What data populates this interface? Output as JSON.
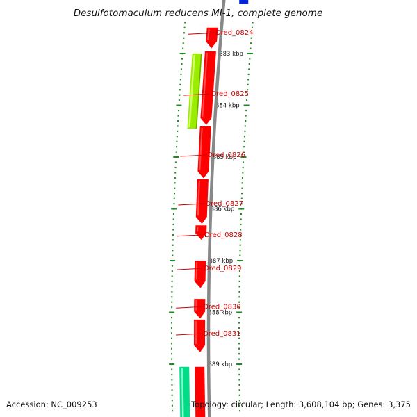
{
  "title": "Desulfotomaculum reducens MI-1, complete genome",
  "accession_text": "Accession: NC_009253",
  "summary_text": "Topology: circular; Length: 3,608,104 bp; Genes: 3,375",
  "colors": {
    "forward_gene": "#ff0000",
    "feature_green": "#99ee00",
    "feature_teal": "#00dd88",
    "top_feature": "#0022dd",
    "backbone": "#888888",
    "tick": "#228822",
    "gene_label": "#cc0000"
  },
  "chart_data": {
    "type": "genome-map",
    "topology": "circular",
    "units": "kbp",
    "ticks_kbp": [
      883,
      884,
      885,
      886,
      887,
      888,
      889
    ],
    "tick_labels": [
      "883 kbp",
      "884 kbp",
      "885 kbp",
      "886 kbp",
      "887 kbp",
      "888 kbp",
      "889 kbp"
    ],
    "view_range_kbp": [
      882.57,
      889.96
    ],
    "genes": [
      {
        "name": "Dred_0824",
        "start_kbp": 882.5,
        "end_kbp": 882.9,
        "track": "red"
      },
      {
        "name": "Dred_0825",
        "start_kbp": 882.96,
        "end_kbp": 884.38,
        "track": "red"
      },
      {
        "name": "Dred_0826",
        "start_kbp": 884.41,
        "end_kbp": 885.41,
        "track": "red"
      },
      {
        "name": "Dred_0827",
        "start_kbp": 885.43,
        "end_kbp": 886.29,
        "track": "red"
      },
      {
        "name": "Dred_0828",
        "start_kbp": 886.32,
        "end_kbp": 886.6,
        "track": "red"
      },
      {
        "name": "Dred_0829",
        "start_kbp": 887.0,
        "end_kbp": 887.53,
        "track": "red"
      },
      {
        "name": "Dred_0830",
        "start_kbp": 887.74,
        "end_kbp": 888.12,
        "track": "red"
      },
      {
        "name": "Dred_0831",
        "start_kbp": 888.14,
        "end_kbp": 888.77,
        "track": "red"
      }
    ],
    "other_features": [
      {
        "start_kbp": 883.0,
        "end_kbp": 884.45,
        "track": "green"
      },
      {
        "start_kbp": 889.05,
        "end_kbp": 890.2,
        "track": "red"
      },
      {
        "start_kbp": 889.05,
        "end_kbp": 890.2,
        "track": "teal"
      }
    ]
  }
}
